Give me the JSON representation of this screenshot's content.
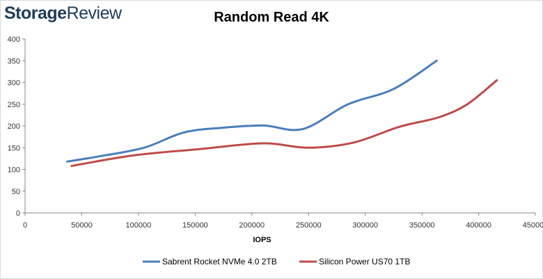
{
  "brand": {
    "logo_text": "StorageReview"
  },
  "chart_data": {
    "type": "line",
    "title": "Random Read 4K",
    "xlabel": "IOPS",
    "ylabel": "",
    "xlim": [
      0,
      450000
    ],
    "ylim": [
      0,
      400
    ],
    "x_ticks": [
      "0",
      "50000",
      "100000",
      "150000",
      "200000",
      "250000",
      "300000",
      "350000",
      "400000",
      "450000"
    ],
    "y_ticks": [
      "0",
      "50",
      "100",
      "150",
      "200",
      "250",
      "300",
      "350",
      "400"
    ],
    "grid": false,
    "legend_position": "bottom",
    "series": [
      {
        "name": "Sabrent Rocket NVMe 4.0 2TB",
        "color": "#4a7ebb",
        "points": [
          [
            37000,
            118
          ],
          [
            65000,
            130
          ],
          [
            105000,
            150
          ],
          [
            140000,
            185
          ],
          [
            175000,
            196
          ],
          [
            210000,
            201
          ],
          [
            245000,
            193
          ],
          [
            285000,
            250
          ],
          [
            325000,
            285
          ],
          [
            363000,
            350
          ]
        ]
      },
      {
        "name": "Silicon Power US70 1TB",
        "color": "#be4b48",
        "points": [
          [
            41000,
            108
          ],
          [
            95000,
            132
          ],
          [
            155000,
            147
          ],
          [
            210000,
            160
          ],
          [
            250000,
            150
          ],
          [
            290000,
            162
          ],
          [
            330000,
            198
          ],
          [
            365000,
            220
          ],
          [
            390000,
            250
          ],
          [
            416000,
            305
          ]
        ]
      }
    ]
  }
}
